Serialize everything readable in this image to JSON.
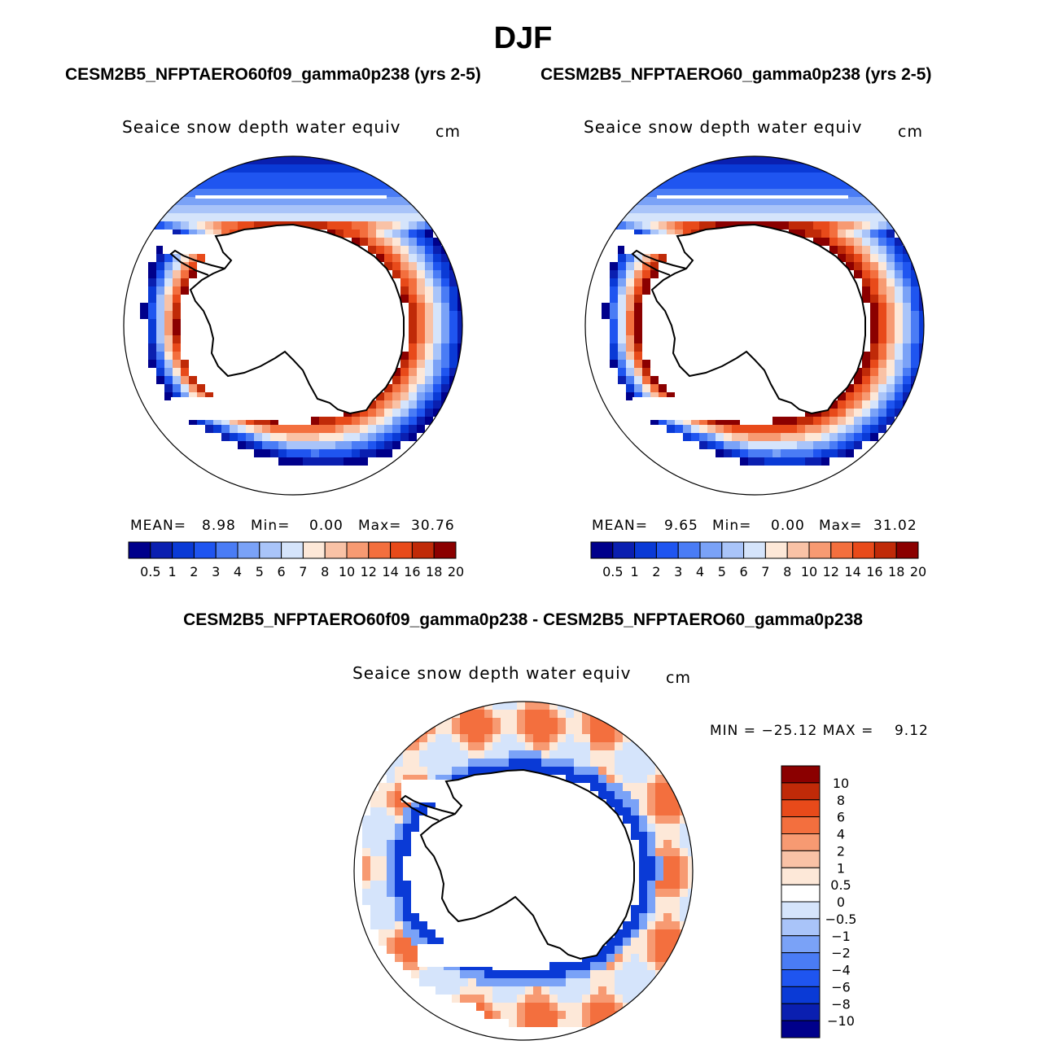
{
  "header": {
    "main_title": "DJF",
    "case_left": "CESM2B5_NFPTAERO60f09_gamma0p238 (yrs 2-5)",
    "case_right": "CESM2B5_NFPTAERO60_gamma0p238 (yrs 2-5)",
    "diff_title": "CESM2B5_NFPTAERO60f09_gamma0p238 - CESM2B5_NFPTAERO60_gamma0p238"
  },
  "panels": {
    "left": {
      "title": "Seaice snow depth water equiv",
      "units": "cm",
      "mean_label": "MEAN=",
      "mean_value": "8.98",
      "min_label": "Min=",
      "min_value": "0.00",
      "max_label": "Max=",
      "max_value": "30.76"
    },
    "right": {
      "title": "Seaice snow depth water equiv",
      "units": "cm",
      "mean_label": "MEAN=",
      "mean_value": "9.65",
      "min_label": "Min=",
      "min_value": "0.00",
      "max_label": "Max=",
      "max_value": "31.02"
    },
    "diff": {
      "title": "Seaice snow depth water equiv",
      "units": "cm",
      "minmax_text": "MIN = −25.12 MAX =    9.12"
    }
  },
  "chart_data": [
    {
      "type": "heatmap",
      "id": "left",
      "title": "Seaice snow depth water equiv",
      "units": "cm",
      "mean": 8.98,
      "min": 0.0,
      "max": 30.76,
      "colorbar": {
        "orientation": "horizontal",
        "levels": [
          "0.5",
          "1",
          "2",
          "3",
          "4",
          "5",
          "6",
          "7",
          "8",
          "10",
          "12",
          "14",
          "16",
          "18",
          "20"
        ],
        "colors": [
          "#00008b",
          "#0a1fb0",
          "#0a3ad6",
          "#1f55f0",
          "#4a7cf5",
          "#7aa2f7",
          "#a9c4f9",
          "#d5e4fb",
          "#fde8d8",
          "#f9c2a6",
          "#f79a72",
          "#f36f3e",
          "#e84a1a",
          "#c02a08",
          "#8b0000"
        ]
      },
      "map": {
        "projection": "south polar stereographic",
        "grid_on": false
      }
    },
    {
      "type": "heatmap",
      "id": "right",
      "title": "Seaice snow depth water equiv",
      "units": "cm",
      "mean": 9.65,
      "min": 0.0,
      "max": 31.02,
      "colorbar": {
        "orientation": "horizontal",
        "levels": [
          "0.5",
          "1",
          "2",
          "3",
          "4",
          "5",
          "6",
          "7",
          "8",
          "10",
          "12",
          "14",
          "16",
          "18",
          "20"
        ],
        "colors": [
          "#00008b",
          "#0a1fb0",
          "#0a3ad6",
          "#1f55f0",
          "#4a7cf5",
          "#7aa2f7",
          "#a9c4f9",
          "#d5e4fb",
          "#fde8d8",
          "#f9c2a6",
          "#f79a72",
          "#f36f3e",
          "#e84a1a",
          "#c02a08",
          "#8b0000"
        ]
      },
      "map": {
        "projection": "south polar stereographic",
        "grid_on": false
      }
    },
    {
      "type": "heatmap",
      "id": "diff",
      "title": "Seaice snow depth water equiv",
      "units": "cm",
      "min": -25.12,
      "max": 9.12,
      "colorbar": {
        "orientation": "vertical",
        "levels": [
          "10",
          "8",
          "6",
          "4",
          "2",
          "1",
          "0.5",
          "0",
          "−0.5",
          "−1",
          "−2",
          "−4",
          "−6",
          "−8",
          "−10"
        ],
        "colors": [
          "#8b0000",
          "#c02a08",
          "#e84a1a",
          "#f36f3e",
          "#f79a72",
          "#f9c2a6",
          "#fde8d8",
          "#ffffff",
          "#d5e4fb",
          "#a9c4f9",
          "#7aa2f7",
          "#4a7cf5",
          "#1f55f0",
          "#0a3ad6",
          "#0a1fb0",
          "#00008b"
        ]
      },
      "map": {
        "projection": "south polar stereographic",
        "grid_on": false
      }
    }
  ]
}
